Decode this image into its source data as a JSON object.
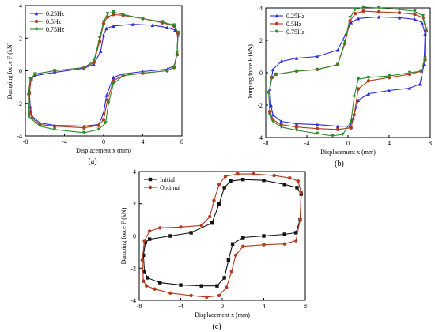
{
  "chart_data": [
    {
      "type": "line",
      "panel_label": "(a)",
      "xlabel": "Displacement x (mm)",
      "ylabel": "Damping force F (kN)",
      "xlim": [
        -8,
        8
      ],
      "ylim": [
        -4,
        4
      ],
      "xticks": [
        "-8",
        "-4",
        "0",
        "4",
        "8"
      ],
      "yticks": [
        "-4",
        "-2",
        "0",
        "2",
        "4"
      ],
      "legend_position": "top-left",
      "series": [
        {
          "name": "0.25Hz",
          "color": "#2a2ae0",
          "marker": "triangle",
          "points": [
            [
              -7.5,
              -2.2
            ],
            [
              -7.6,
              -1.2
            ],
            [
              -7.4,
              -0.5
            ],
            [
              -7.0,
              -0.3
            ],
            [
              -5,
              -0.1
            ],
            [
              -2,
              0.15
            ],
            [
              -1,
              0.4
            ],
            [
              -0.3,
              1.2
            ],
            [
              0,
              2.2
            ],
            [
              0.3,
              2.6
            ],
            [
              1,
              2.75
            ],
            [
              3,
              2.85
            ],
            [
              5,
              2.8
            ],
            [
              6.5,
              2.65
            ],
            [
              7.3,
              2.5
            ],
            [
              7.6,
              2.2
            ],
            [
              7.5,
              1.0
            ],
            [
              7.2,
              0.3
            ],
            [
              6.5,
              0.1
            ],
            [
              4,
              -0.05
            ],
            [
              2,
              -0.2
            ],
            [
              1,
              -0.4
            ],
            [
              0.3,
              -1.5
            ],
            [
              0,
              -2.6
            ],
            [
              -0.5,
              -3.3
            ],
            [
              -2,
              -3.4
            ],
            [
              -5,
              -3.35
            ],
            [
              -6.5,
              -3.2
            ],
            [
              -7.3,
              -2.8
            ],
            [
              -7.5,
              -2.2
            ]
          ]
        },
        {
          "name": "0.5Hz",
          "color": "#b23a1e",
          "marker": "circle",
          "points": [
            [
              -7.5,
              -2.6
            ],
            [
              -7.6,
              -1.4
            ],
            [
              -7.4,
              -0.5
            ],
            [
              -7.0,
              -0.2
            ],
            [
              -5,
              0
            ],
            [
              -2,
              0.2
            ],
            [
              -1,
              0.5
            ],
            [
              -0.4,
              1.8
            ],
            [
              0,
              2.9
            ],
            [
              0.4,
              3.3
            ],
            [
              1,
              3.45
            ],
            [
              2,
              3.4
            ],
            [
              4,
              3.2
            ],
            [
              6,
              2.95
            ],
            [
              7.2,
              2.75
            ],
            [
              7.6,
              2.3
            ],
            [
              7.5,
              1.0
            ],
            [
              7.2,
              0.2
            ],
            [
              6.5,
              0
            ],
            [
              4,
              -0.15
            ],
            [
              2,
              -0.3
            ],
            [
              1,
              -0.6
            ],
            [
              0.4,
              -1.8
            ],
            [
              0,
              -3.0
            ],
            [
              -0.5,
              -3.35
            ],
            [
              -2,
              -3.5
            ],
            [
              -5,
              -3.4
            ],
            [
              -6.5,
              -3.3
            ],
            [
              -7.3,
              -2.9
            ],
            [
              -7.5,
              -2.6
            ]
          ]
        },
        {
          "name": "0.75Hz",
          "color": "#2b8a2b",
          "marker": "triangle-down",
          "points": [
            [
              -7.6,
              -2.8
            ],
            [
              -7.7,
              -1.5
            ],
            [
              -7.5,
              -0.5
            ],
            [
              -7.0,
              -0.2
            ],
            [
              -5,
              0
            ],
            [
              -2,
              0.2
            ],
            [
              -1,
              0.6
            ],
            [
              -0.4,
              2.0
            ],
            [
              0,
              3.0
            ],
            [
              0.4,
              3.5
            ],
            [
              1,
              3.6
            ],
            [
              2,
              3.45
            ],
            [
              4,
              3.2
            ],
            [
              6,
              3.0
            ],
            [
              7.2,
              2.8
            ],
            [
              7.6,
              2.35
            ],
            [
              7.5,
              1.1
            ],
            [
              7.2,
              0.2
            ],
            [
              6.5,
              0
            ],
            [
              4,
              -0.15
            ],
            [
              2,
              -0.3
            ],
            [
              1,
              -0.8
            ],
            [
              0.5,
              -2.0
            ],
            [
              0.2,
              -3.2
            ],
            [
              -0.5,
              -3.6
            ],
            [
              -2,
              -3.8
            ],
            [
              -5,
              -3.6
            ],
            [
              -6.5,
              -3.4
            ],
            [
              -7.3,
              -3.0
            ],
            [
              -7.6,
              -2.8
            ]
          ]
        }
      ]
    },
    {
      "type": "line",
      "panel_label": "(b)",
      "xlabel": "Displacement x (mm)",
      "ylabel": "Damping force F (kN)",
      "xlim": [
        -8,
        8
      ],
      "ylim": [
        -4,
        4
      ],
      "xticks": [
        "-8",
        "-4",
        "0",
        "4",
        "8"
      ],
      "yticks": [
        "-4",
        "-2",
        "0",
        "2",
        "4"
      ],
      "legend_position": "top-left",
      "series": [
        {
          "name": "0.25Hz",
          "color": "#2a2ae0",
          "marker": "triangle",
          "points": [
            [
              -7.5,
              -2.0
            ],
            [
              -7.6,
              -1.0
            ],
            [
              -7.3,
              0.2
            ],
            [
              -6.5,
              0.7
            ],
            [
              -5,
              0.9
            ],
            [
              -3,
              1.0
            ],
            [
              -1,
              1.4
            ],
            [
              -0.2,
              2.4
            ],
            [
              0.3,
              3.1
            ],
            [
              1,
              3.35
            ],
            [
              3,
              3.45
            ],
            [
              5,
              3.4
            ],
            [
              6.5,
              3.3
            ],
            [
              7.2,
              3.1
            ],
            [
              7.5,
              2.4
            ],
            [
              7.4,
              0.5
            ],
            [
              7.0,
              -0.7
            ],
            [
              6,
              -0.95
            ],
            [
              4,
              -1.1
            ],
            [
              2,
              -1.3
            ],
            [
              1,
              -1.7
            ],
            [
              0.5,
              -2.8
            ],
            [
              0.2,
              -3.3
            ],
            [
              -1,
              -3.3
            ],
            [
              -3,
              -3.2
            ],
            [
              -5,
              -3.15
            ],
            [
              -6.5,
              -3.0
            ],
            [
              -7.3,
              -2.6
            ],
            [
              -7.5,
              -2.0
            ]
          ]
        },
        {
          "name": "0.5Hz",
          "color": "#b23a1e",
          "marker": "circle",
          "points": [
            [
              -7.6,
              -2.4
            ],
            [
              -7.7,
              -1.2
            ],
            [
              -7.4,
              -0.3
            ],
            [
              -7.0,
              -0.1
            ],
            [
              -5,
              0.1
            ],
            [
              -3,
              0.2
            ],
            [
              -1,
              0.5
            ],
            [
              -0.3,
              1.8
            ],
            [
              0.2,
              3.2
            ],
            [
              0.7,
              3.65
            ],
            [
              1.5,
              3.8
            ],
            [
              3,
              3.75
            ],
            [
              5,
              3.7
            ],
            [
              6.5,
              3.6
            ],
            [
              7.3,
              3.4
            ],
            [
              7.6,
              2.6
            ],
            [
              7.5,
              0.8
            ],
            [
              7.1,
              0.1
            ],
            [
              6,
              -0.1
            ],
            [
              4,
              -0.3
            ],
            [
              2,
              -0.5
            ],
            [
              1,
              -1.0
            ],
            [
              0.6,
              -2.6
            ],
            [
              0.3,
              -3.4
            ],
            [
              -1,
              -3.5
            ],
            [
              -3,
              -3.45
            ],
            [
              -5,
              -3.35
            ],
            [
              -6.5,
              -3.2
            ],
            [
              -7.3,
              -2.9
            ],
            [
              -7.6,
              -2.4
            ]
          ]
        },
        {
          "name": "0.75Hz",
          "color": "#2b8a2b",
          "marker": "triangle-down",
          "points": [
            [
              -7.6,
              -2.6
            ],
            [
              -7.7,
              -1.3
            ],
            [
              -7.4,
              -0.3
            ],
            [
              -7.0,
              -0.1
            ],
            [
              -5,
              0.1
            ],
            [
              -3,
              0.2
            ],
            [
              -1,
              0.5
            ],
            [
              -0.3,
              1.9
            ],
            [
              0.2,
              3.4
            ],
            [
              0.7,
              3.9
            ],
            [
              1.5,
              4.05
            ],
            [
              3,
              4.0
            ],
            [
              5,
              3.9
            ],
            [
              6.5,
              3.8
            ],
            [
              7.3,
              3.5
            ],
            [
              7.6,
              2.7
            ],
            [
              7.5,
              0.9
            ],
            [
              7.1,
              0.1
            ],
            [
              6,
              0
            ],
            [
              4,
              -0.2
            ],
            [
              2,
              -0.3
            ],
            [
              1,
              -0.4
            ],
            [
              0.6,
              -1.5
            ],
            [
              0.3,
              -3.0
            ],
            [
              -0.5,
              -3.8
            ],
            [
              -1.5,
              -3.9
            ],
            [
              -3,
              -3.75
            ],
            [
              -5,
              -3.55
            ],
            [
              -6.5,
              -3.35
            ],
            [
              -7.3,
              -3.0
            ],
            [
              -7.6,
              -2.6
            ]
          ]
        }
      ]
    },
    {
      "type": "line",
      "panel_label": "(c)",
      "xlabel": "Displacement x (mm)",
      "ylabel": "Damping force F (kN)",
      "xlim": [
        -8,
        8
      ],
      "ylim": [
        -4,
        4
      ],
      "xticks": [
        "-8",
        "-4",
        "0",
        "4",
        "8"
      ],
      "yticks": [
        "-4",
        "-2",
        "0",
        "2",
        "4"
      ],
      "legend_position": "top-left",
      "series": [
        {
          "name": "Initial",
          "color": "#111111",
          "marker": "square",
          "points": [
            [
              -7.5,
              -2.2
            ],
            [
              -7.6,
              -1.2
            ],
            [
              -7.4,
              -0.4
            ],
            [
              -7.0,
              -0.2
            ],
            [
              -5,
              0
            ],
            [
              -3,
              0.2
            ],
            [
              -1,
              0.8
            ],
            [
              -0.3,
              2.0
            ],
            [
              0.2,
              3.0
            ],
            [
              0.8,
              3.4
            ],
            [
              2,
              3.5
            ],
            [
              4,
              3.45
            ],
            [
              6,
              3.2
            ],
            [
              7.2,
              3.0
            ],
            [
              7.6,
              2.6
            ],
            [
              7.5,
              1.0
            ],
            [
              7.1,
              0.2
            ],
            [
              6,
              0.1
            ],
            [
              4,
              0
            ],
            [
              2,
              -0.1
            ],
            [
              1,
              -0.5
            ],
            [
              0.6,
              -1.5
            ],
            [
              0.2,
              -2.6
            ],
            [
              -0.5,
              -3.1
            ],
            [
              -2,
              -3.1
            ],
            [
              -4,
              -3.05
            ],
            [
              -6,
              -2.9
            ],
            [
              -7.2,
              -2.6
            ],
            [
              -7.5,
              -2.2
            ]
          ]
        },
        {
          "name": "Optimal",
          "color": "#b23a1e",
          "marker": "circle",
          "points": [
            [
              -7.6,
              -2.8
            ],
            [
              -7.7,
              -1.5
            ],
            [
              -7.5,
              -0.3
            ],
            [
              -7.0,
              0.3
            ],
            [
              -6,
              0.5
            ],
            [
              -4,
              0.55
            ],
            [
              -2,
              0.65
            ],
            [
              -1.2,
              1.2
            ],
            [
              -0.8,
              2.2
            ],
            [
              -0.3,
              3.2
            ],
            [
              0.3,
              3.7
            ],
            [
              1.5,
              3.85
            ],
            [
              3,
              3.85
            ],
            [
              5,
              3.75
            ],
            [
              6.5,
              3.6
            ],
            [
              7.3,
              3.4
            ],
            [
              7.6,
              2.7
            ],
            [
              7.5,
              1.0
            ],
            [
              7.1,
              -0.3
            ],
            [
              6,
              -0.5
            ],
            [
              4,
              -0.55
            ],
            [
              2,
              -0.65
            ],
            [
              1.3,
              -1.2
            ],
            [
              0.9,
              -2.2
            ],
            [
              0.4,
              -3.2
            ],
            [
              -0.3,
              -3.7
            ],
            [
              -1.5,
              -3.8
            ],
            [
              -3,
              -3.7
            ],
            [
              -5,
              -3.55
            ],
            [
              -6.5,
              -3.3
            ],
            [
              -7.3,
              -3.1
            ],
            [
              -7.6,
              -2.8
            ]
          ]
        }
      ]
    }
  ]
}
